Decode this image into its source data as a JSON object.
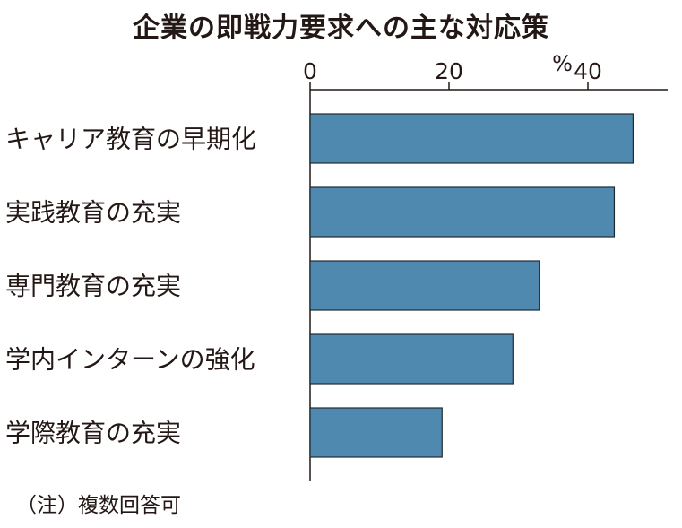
{
  "title": "企業の即戦力要求への主な対応策",
  "note": "（注）複数回答可",
  "chart_data": {
    "type": "bar",
    "orientation": "horizontal",
    "title": "企業の即戦力要求への主な対応策",
    "unit": "%",
    "xlim": [
      0,
      50
    ],
    "ticks": [
      "0",
      "20",
      "40"
    ],
    "categories": [
      "キャリア教育の早期化",
      "実践教育の充実",
      "専門教育の充実",
      "学内インターンの強化",
      "学際教育の充実"
    ],
    "values": [
      46.5,
      43.8,
      33.0,
      29.2,
      19.0
    ],
    "bar_color": "#5089b0",
    "grid": false
  }
}
